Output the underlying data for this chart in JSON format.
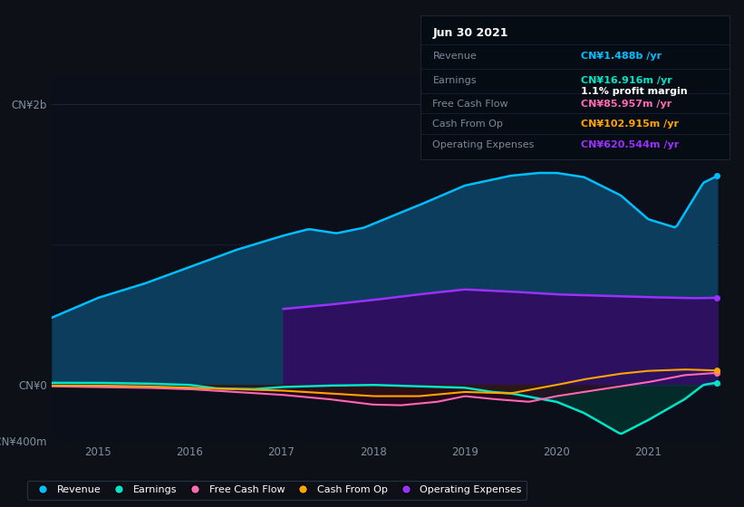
{
  "background_color": "#0d1117",
  "plot_bg_color": "#0a0f1a",
  "ylim": [
    -400000000,
    2200000000
  ],
  "yticks": [
    -400000000,
    0,
    2000000000
  ],
  "ytick_labels": [
    "-CN¥400m",
    "CN¥0",
    "CN¥2b"
  ],
  "xlabel_years": [
    "2015",
    "2016",
    "2017",
    "2018",
    "2019",
    "2020",
    "2021"
  ],
  "colors": {
    "revenue": "#00bfff",
    "earnings": "#00e5c8",
    "free_cash_flow": "#ff69b4",
    "cash_from_op": "#ffa500",
    "operating_expenses": "#9b30ff"
  },
  "tooltip": {
    "date": "Jun 30 2021",
    "revenue_label": "Revenue",
    "revenue_value": "CN¥1.488b /yr",
    "earnings_label": "Earnings",
    "earnings_value": "CN¥16.916m /yr",
    "margin_value": "1.1% profit margin",
    "fcf_label": "Free Cash Flow",
    "fcf_value": "CN¥85.957m /yr",
    "cfop_label": "Cash From Op",
    "cfop_value": "CN¥102.915m /yr",
    "opex_label": "Operating Expenses",
    "opex_value": "CN¥620.544m /yr"
  },
  "legend": [
    {
      "label": "Revenue",
      "color": "#00bfff"
    },
    {
      "label": "Earnings",
      "color": "#00e5c8"
    },
    {
      "label": "Free Cash Flow",
      "color": "#ff69b4"
    },
    {
      "label": "Cash From Op",
      "color": "#ffa500"
    },
    {
      "label": "Operating Expenses",
      "color": "#9b30ff"
    }
  ],
  "grid_color": "#1e2a3a",
  "axis_label_color": "#6a7f99"
}
